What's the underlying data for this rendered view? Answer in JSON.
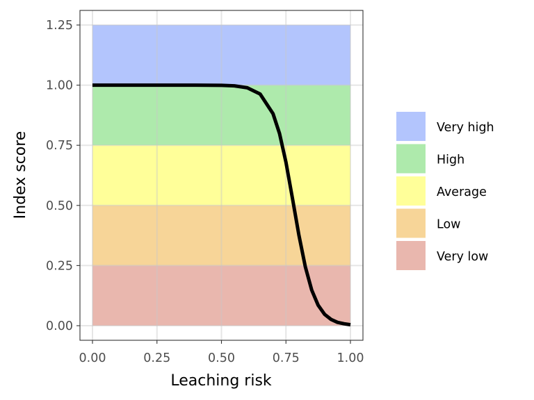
{
  "chart_data": {
    "type": "line",
    "title": "",
    "xlabel": "Leaching risk",
    "ylabel": "Index score",
    "xlim": [
      0,
      1
    ],
    "ylim": [
      0,
      1.25
    ],
    "xticks": [
      "0.00",
      "0.25",
      "0.50",
      "0.75",
      "1.00"
    ],
    "yticks": [
      "0.00",
      "0.25",
      "0.50",
      "0.75",
      "1.00",
      "1.25"
    ],
    "grid": true,
    "bands": [
      {
        "name": "Very high",
        "ymin": 1.0,
        "ymax": 1.25,
        "color": "#b3c5fd"
      },
      {
        "name": "High",
        "ymin": 0.75,
        "ymax": 1.0,
        "color": "#aeeaac"
      },
      {
        "name": "Average",
        "ymin": 0.5,
        "ymax": 0.75,
        "color": "#ffff99"
      },
      {
        "name": "Low",
        "ymin": 0.25,
        "ymax": 0.5,
        "color": "#f7d598"
      },
      {
        "name": "Very low",
        "ymin": 0.0,
        "ymax": 0.25,
        "color": "#e9b7ae"
      }
    ],
    "legend_position": "right",
    "series": [
      {
        "name": "Index score",
        "color": "#000000",
        "x": [
          0,
          0.1,
          0.2,
          0.3,
          0.4,
          0.5,
          0.55,
          0.6,
          0.65,
          0.7,
          0.725,
          0.75,
          0.775,
          0.8,
          0.825,
          0.85,
          0.875,
          0.9,
          0.925,
          0.95,
          0.975,
          1.0
        ],
        "y": [
          1.0,
          1.0,
          1.0,
          1.0,
          0.9999,
          0.999,
          0.997,
          0.989,
          0.963,
          0.881,
          0.799,
          0.679,
          0.531,
          0.378,
          0.245,
          0.148,
          0.085,
          0.047,
          0.026,
          0.014,
          0.008,
          0.004
        ]
      }
    ]
  }
}
